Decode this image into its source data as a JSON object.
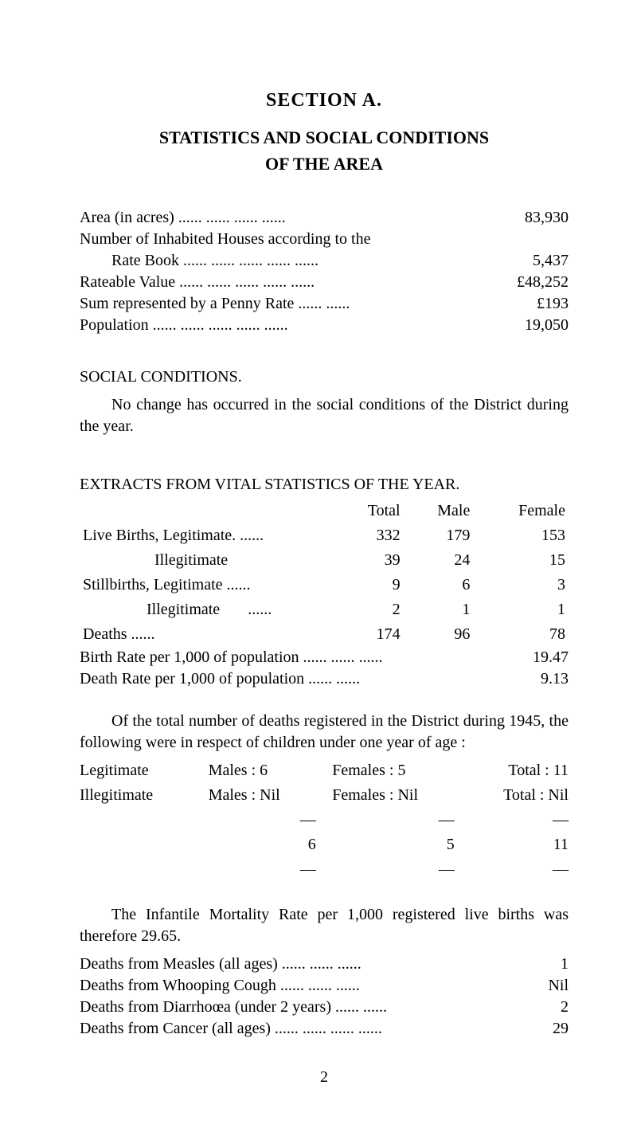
{
  "header": {
    "section": "SECTION A.",
    "title_l1": "STATISTICS AND SOCIAL CONDITIONS",
    "title_l2": "OF THE AREA"
  },
  "area_stats": [
    {
      "label": "Area (in acres)            ......      ......       ......       ......",
      "value": "83,930"
    },
    {
      "label": "Number of Inhabited Houses according to the",
      "value": ""
    },
    {
      "label": "Rate Book      ......      ......      ......      ......      ......",
      "value": "5,437",
      "indent": true
    },
    {
      "label": "Rateable Value      ......      ......      ......      ......      ......",
      "value": "£48,252"
    },
    {
      "label": "Sum represented by a Penny Rate          ......      ......",
      "value": "£193"
    },
    {
      "label": "Population            ......      ......      ......      ......      ......",
      "value": "19,050"
    }
  ],
  "social": {
    "heading": "SOCIAL CONDITIONS.",
    "text": "No change has occurred in the social conditions of the District during the year."
  },
  "extracts": {
    "heading": "EXTRACTS FROM VITAL STATISTICS OF THE YEAR.",
    "cols": {
      "c0": "",
      "c1": "Total",
      "c2": "Male",
      "c3": "Female"
    },
    "rows": [
      {
        "label": "Live Births, Legitimate. ......",
        "total": "332",
        "male": "179",
        "female": "153"
      },
      {
        "label": "                  Illegitimate",
        "total": "39",
        "male": "24",
        "female": "15"
      },
      {
        "label": "Stillbirths, Legitimate     ......",
        "total": "9",
        "male": "6",
        "female": "3"
      },
      {
        "label": "                Illegitimate       ......",
        "total": "2",
        "male": "1",
        "female": "1"
      },
      {
        "label": "Deaths                            ......",
        "total": "174",
        "male": "96",
        "female": "78"
      }
    ],
    "rates": [
      {
        "label": "Birth Rate per 1,000 of population ......      ......      ......",
        "value": "19.47"
      },
      {
        "label": "Death Rate per 1,000 of population          ......      ......",
        "value": "9.13"
      }
    ]
  },
  "children_deaths": {
    "intro": "Of the total number of deaths registered in the District during 1945, the following were in respect of children under one year of age :",
    "rows": [
      {
        "c1": "Legitimate",
        "c2": "Males :   6",
        "c3": "Females :   5",
        "c4": "Total :  11"
      },
      {
        "c1": "Illegitimate",
        "c2": "Males : Nil",
        "c3": "Females : Nil",
        "c4": "Total : Nil"
      }
    ],
    "dash": "—",
    "totals": {
      "c2": "6",
      "c3": "5",
      "c4": "11"
    }
  },
  "mortality": {
    "intro": "The Infantile Mortality Rate per 1,000 registered live births was therefore 29.65.",
    "rows": [
      {
        "label": "Deaths from Measles (all ages)           ......      ......      ......",
        "value": "1"
      },
      {
        "label": "Deaths from Whooping Cough            ......      ......      ......",
        "value": "Nil"
      },
      {
        "label": "Deaths from Diarrhoœa (under 2 years)        ......      ......",
        "value": "2"
      },
      {
        "label": "Deaths from Cancer (all ages) ......      ......      ......      ......",
        "value": "29"
      }
    ]
  },
  "page": "2"
}
